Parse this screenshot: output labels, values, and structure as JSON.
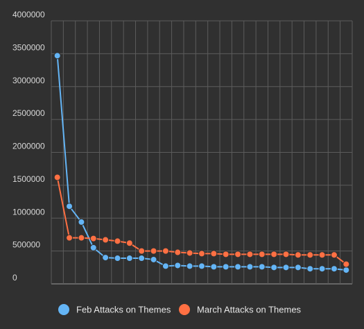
{
  "chart_data": {
    "type": "line",
    "x": [
      1,
      2,
      3,
      4,
      5,
      6,
      7,
      8,
      9,
      10,
      11,
      12,
      13,
      14,
      15,
      16,
      17,
      18,
      19,
      20,
      21,
      22,
      23,
      24,
      25
    ],
    "ylim": [
      0,
      4000000
    ],
    "yticks": [
      "0",
      "500000",
      "1000000",
      "1500000",
      "2000000",
      "2500000",
      "3000000",
      "3500000",
      "4000000"
    ],
    "grid": true,
    "legend_position": "bottom-center",
    "series": [
      {
        "name": "Feb Attacks on Themes",
        "color": "#64b5f6",
        "values": [
          3470000,
          1180000,
          940000,
          550000,
          400000,
          390000,
          390000,
          390000,
          370000,
          270000,
          280000,
          270000,
          270000,
          260000,
          260000,
          260000,
          260000,
          260000,
          250000,
          250000,
          250000,
          230000,
          230000,
          230000,
          210000
        ]
      },
      {
        "name": "March Attacks on Themes",
        "color": "#ff7043",
        "values": [
          1620000,
          700000,
          700000,
          690000,
          670000,
          650000,
          620000,
          500000,
          500000,
          500000,
          480000,
          470000,
          460000,
          460000,
          450000,
          450000,
          450000,
          450000,
          450000,
          450000,
          440000,
          440000,
          440000,
          440000,
          300000
        ]
      }
    ]
  }
}
